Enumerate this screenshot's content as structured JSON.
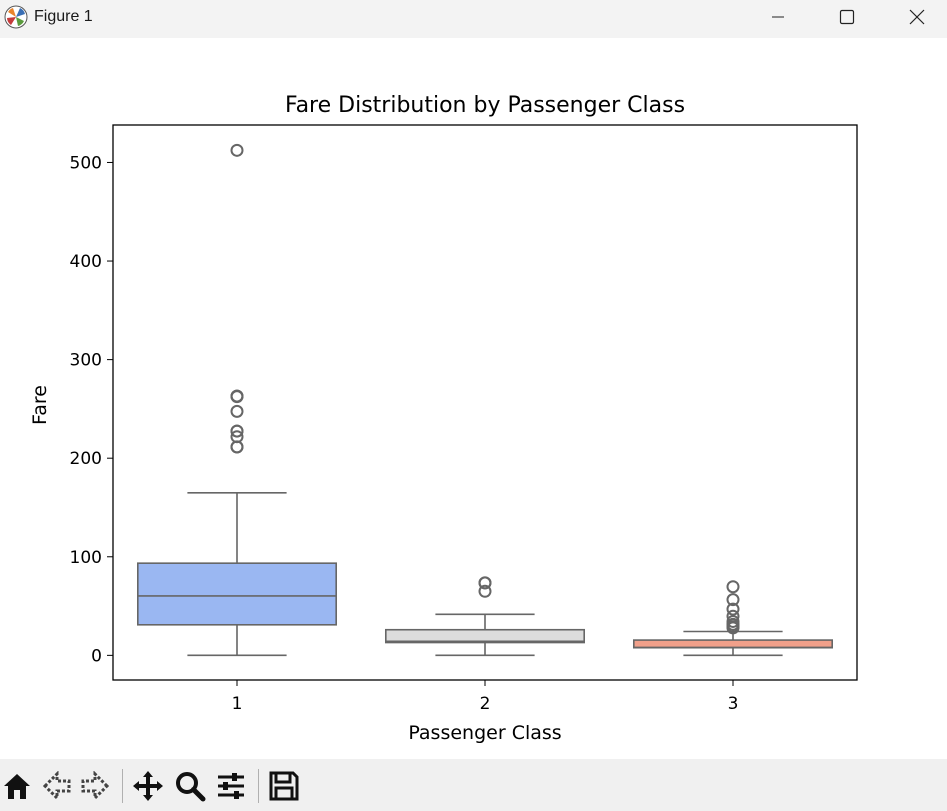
{
  "window": {
    "title": "Figure 1",
    "icons": [
      "matplotlib-icon",
      "minimize-icon",
      "maximize-icon",
      "close-icon"
    ]
  },
  "toolbar": {
    "tools": [
      "home-icon",
      "back-icon",
      "forward-icon",
      "pan-icon",
      "zoom-icon",
      "configure-subplots-icon",
      "save-icon"
    ]
  },
  "chart_data": {
    "type": "box",
    "title": "Fare Distribution by Passenger Class",
    "xlabel": "Passenger Class",
    "ylabel": "Fare",
    "ylim": [
      -25,
      538
    ],
    "yticks": [
      0,
      100,
      200,
      300,
      400,
      500
    ],
    "grid": false,
    "categories": [
      "1",
      "2",
      "3"
    ],
    "boxes": [
      {
        "category": "1",
        "color": "#9ab7f2",
        "whisker_low": 0,
        "q1": 31,
        "median": 60.3,
        "q3": 93.5,
        "whisker_high": 164.9,
        "outliers": [
          211.3,
          211.5,
          221.8,
          227.5,
          227.5,
          247.5,
          262.4,
          263,
          263,
          512.3
        ]
      },
      {
        "category": "2",
        "color": "#dcdcdc",
        "whisker_low": 0,
        "q1": 13,
        "median": 14.2,
        "q3": 26,
        "whisker_high": 41.6,
        "outliers": [
          65,
          73.5,
          73.5
        ]
      },
      {
        "category": "3",
        "color": "#f1a08a",
        "whisker_low": 0,
        "q1": 7.75,
        "median": 8.05,
        "q3": 15.5,
        "whisker_high": 24.2,
        "outliers": [
          27.9,
          29.1,
          31.3,
          31.4,
          34.4,
          39.7,
          46.9,
          56.5,
          69.6
        ]
      }
    ]
  }
}
